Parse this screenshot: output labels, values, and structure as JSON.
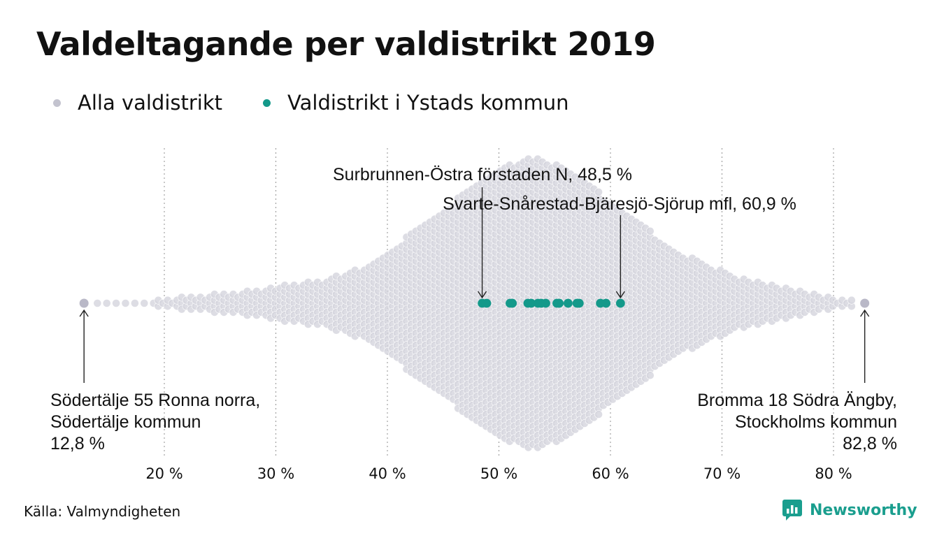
{
  "chart_data": {
    "type": "scatter",
    "subtype": "beeswarm",
    "title": "Valdeltagande per valdistrikt 2019",
    "legend": [
      {
        "label": "Alla valdistrikt",
        "color": "#c3c3cf"
      },
      {
        "label": "Valdistrikt i Ystads kommun",
        "color": "#14998a"
      }
    ],
    "legend_position": "top-left",
    "xlim": [
      10.5,
      86
    ],
    "x_ticks": [
      20,
      30,
      40,
      50,
      60,
      70,
      80
    ],
    "x_tick_labels": [
      "20 %",
      "30 %",
      "40 %",
      "50 %",
      "60 %",
      "70 %",
      "80 %"
    ],
    "grid": "vertical dotted",
    "series": [
      {
        "name": "Alla valdistrikt",
        "color": "#c3c3cf",
        "distribution": {
          "min": 12.8,
          "max": 82.8,
          "peak": 53.5,
          "density_profile": [
            [
              12.8,
              0
            ],
            [
              15,
              0.4
            ],
            [
              17,
              0.7
            ],
            [
              18.5,
              0.9
            ],
            [
              20,
              1.5
            ],
            [
              22,
              2.2
            ],
            [
              25,
              3.3
            ],
            [
              28,
              4.2
            ],
            [
              31,
              6.0
            ],
            [
              34,
              7.5
            ],
            [
              37,
              10.5
            ],
            [
              40,
              16.5
            ],
            [
              43,
              25.0
            ],
            [
              46,
              33.0
            ],
            [
              49,
              41.0
            ],
            [
              51,
              45.0
            ],
            [
              53,
              47.0
            ],
            [
              54,
              46.5
            ],
            [
              56,
              43.0
            ],
            [
              58,
              38.5
            ],
            [
              60,
              33.0
            ],
            [
              62,
              27.5
            ],
            [
              64,
              22.0
            ],
            [
              66,
              17.0
            ],
            [
              68,
              13.5
            ],
            [
              70,
              10.5
            ],
            [
              72,
              8.0
            ],
            [
              74,
              6.5
            ],
            [
              76,
              5.0
            ],
            [
              78,
              3.5
            ],
            [
              80,
              2.2
            ],
            [
              81,
              1.4
            ],
            [
              82,
              0.8
            ],
            [
              82.8,
              0
            ]
          ]
        },
        "extremes": [
          {
            "label": "Södertälje 55 Ronna norra,",
            "sub": "Södertälje kommun",
            "value_label": "12,8 %",
            "x": 12.8
          },
          {
            "label": "Bromma 18 Södra Ängby,",
            "sub": "Stockholms kommun",
            "value_label": "82,8 %",
            "x": 82.8
          }
        ]
      },
      {
        "name": "Valdistrikt i Ystads kommun",
        "color": "#14998a",
        "x": [
          48.5,
          48.9,
          51.0,
          51.2,
          52.6,
          52.9,
          53.5,
          53.8,
          54.2,
          55.2,
          55.4,
          56.2,
          57.0,
          57.2,
          59.1,
          59.6,
          60.9
        ]
      }
    ],
    "annotations": [
      {
        "text": "Surbrunnen-Östra förstaden N, 48,5 %",
        "x": 48.5
      },
      {
        "text": "Svarte-Snårestad-Bjäresjö-Sjörup mfl, 60,9 %",
        "x": 60.9
      }
    ]
  },
  "footer": {
    "source": "Källa: Valmyndigheten",
    "brand": "Newsworthy"
  }
}
